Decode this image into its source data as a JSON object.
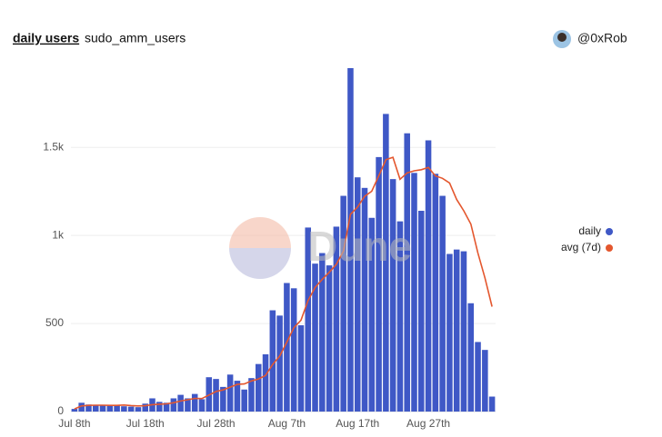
{
  "header": {
    "title": "daily users",
    "subtitle": "sudo_amm_users",
    "author": "@0xRob"
  },
  "chart_data": {
    "type": "bar",
    "watermark": "Dune",
    "categories": [
      "Jul 8th",
      "Jul 9th",
      "Jul 10th",
      "Jul 11th",
      "Jul 12th",
      "Jul 13th",
      "Jul 14th",
      "Jul 15th",
      "Jul 16th",
      "Jul 17th",
      "Jul 18th",
      "Jul 19th",
      "Jul 20th",
      "Jul 21st",
      "Jul 22nd",
      "Jul 23rd",
      "Jul 24th",
      "Jul 25th",
      "Jul 26th",
      "Jul 27th",
      "Jul 28th",
      "Jul 29th",
      "Jul 30th",
      "Jul 31st",
      "Aug 1st",
      "Aug 2nd",
      "Aug 3rd",
      "Aug 4th",
      "Aug 5th",
      "Aug 6th",
      "Aug 7th",
      "Aug 8th",
      "Aug 9th",
      "Aug 10th",
      "Aug 11th",
      "Aug 12th",
      "Aug 13th",
      "Aug 14th",
      "Aug 15th",
      "Aug 16th",
      "Aug 17th",
      "Aug 18th",
      "Aug 19th",
      "Aug 20th",
      "Aug 21st",
      "Aug 22nd",
      "Aug 23rd",
      "Aug 24th",
      "Aug 25th",
      "Aug 26th",
      "Aug 27th",
      "Aug 28th",
      "Aug 29th",
      "Aug 30th",
      "Aug 31st",
      "Sep 1st",
      "Sep 2nd",
      "Sep 3rd",
      "Sep 4th",
      "Sep 5th"
    ],
    "series": [
      {
        "name": "daily",
        "type": "bar",
        "color": "#3f58c6",
        "values": [
          15,
          50,
          40,
          38,
          35,
          33,
          35,
          30,
          28,
          25,
          45,
          75,
          55,
          50,
          75,
          95,
          75,
          100,
          70,
          195,
          185,
          140,
          210,
          175,
          125,
          190,
          270,
          325,
          575,
          545,
          730,
          700,
          490,
          1045,
          840,
          900,
          830,
          1050,
          1225,
          1950,
          1330,
          1270,
          1100,
          1445,
          1690,
          1320,
          1080,
          1580,
          1355,
          1140,
          1540,
          1350,
          1225,
          895,
          920,
          910,
          615,
          395,
          350,
          85
        ]
      },
      {
        "name": "avg (7d)",
        "type": "line",
        "color": "#e4572e",
        "values": [
          15,
          32,
          35,
          36,
          36,
          35,
          35,
          37,
          34,
          32,
          33,
          39,
          42,
          44,
          50,
          60,
          67,
          75,
          74,
          94,
          114,
          123,
          139,
          154,
          157,
          174,
          185,
          205,
          267,
          315,
          394,
          476,
          519,
          630,
          704,
          750,
          791,
          836,
          911,
          1120,
          1161,
          1222,
          1251,
          1339,
          1430,
          1444,
          1319,
          1355,
          1367,
          1373,
          1386,
          1338,
          1324,
          1298,
          1204,
          1140,
          1065,
          901,
          759,
          596
        ]
      }
    ],
    "ylim": [
      0,
      1950
    ],
    "yticks": [
      0,
      500,
      {
        "value": 1000,
        "label": "1k"
      },
      {
        "value": 1500,
        "label": "1.5k"
      }
    ],
    "grid": true,
    "legend": "right"
  }
}
